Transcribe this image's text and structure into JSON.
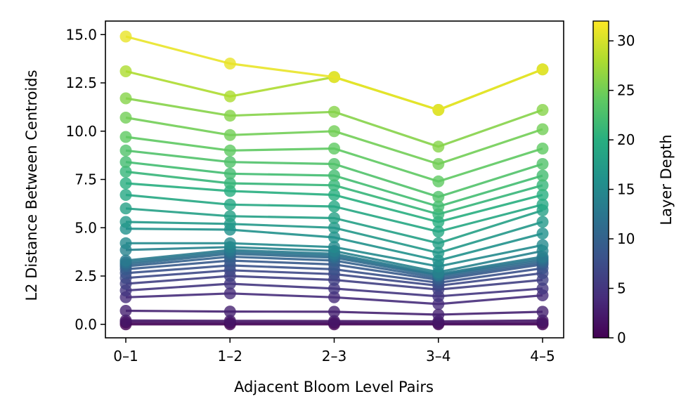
{
  "chart_data": {
    "type": "line",
    "title": "",
    "xlabel": "Adjacent Bloom Level Pairs",
    "ylabel": "L2 Distance Between Centroids",
    "categories": [
      "0–1",
      "1–2",
      "2–3",
      "3–4",
      "4–5"
    ],
    "ylim": [
      -0.7,
      15.7
    ],
    "yticks": [
      0.0,
      2.5,
      5.0,
      7.5,
      10.0,
      12.5,
      15.0
    ],
    "ytick_labels": [
      "0.0",
      "2.5",
      "5.0",
      "7.5",
      "10.0",
      "12.5",
      "15.0"
    ],
    "grid": false,
    "legend": "none",
    "colorbar": {
      "label": "Layer Depth",
      "colormap": "viridis",
      "range": [
        0,
        32
      ],
      "ticks": [
        0,
        5,
        10,
        15,
        20,
        25,
        30
      ],
      "tick_labels": [
        "0",
        "5",
        "10",
        "15",
        "20",
        "25",
        "30"
      ]
    },
    "series": [
      {
        "layer": 0,
        "values": [
          0.0,
          0.0,
          0.0,
          0.0,
          0.0
        ]
      },
      {
        "layer": 1,
        "values": [
          0.1,
          0.08,
          0.08,
          0.06,
          0.08
        ]
      },
      {
        "layer": 2,
        "values": [
          0.2,
          0.18,
          0.17,
          0.15,
          0.2
        ]
      },
      {
        "layer": 3,
        "values": [
          0.7,
          0.66,
          0.65,
          0.5,
          0.65
        ]
      },
      {
        "layer": 4,
        "values": [
          1.4,
          1.6,
          1.4,
          1.05,
          1.5
        ]
      },
      {
        "layer": 5,
        "values": [
          1.75,
          2.1,
          1.85,
          1.45,
          1.85
        ]
      },
      {
        "layer": 6,
        "values": [
          2.1,
          2.5,
          2.3,
          1.8,
          2.3
        ]
      },
      {
        "layer": 7,
        "values": [
          2.4,
          2.8,
          2.6,
          2.0,
          2.65
        ]
      },
      {
        "layer": 8,
        "values": [
          2.65,
          3.05,
          2.85,
          2.15,
          2.9
        ]
      },
      {
        "layer": 9,
        "values": [
          2.85,
          3.3,
          3.1,
          2.3,
          3.1
        ]
      },
      {
        "layer": 10,
        "values": [
          3.0,
          3.5,
          3.3,
          2.4,
          3.2
        ]
      },
      {
        "layer": 11,
        "values": [
          3.1,
          3.65,
          3.45,
          2.5,
          3.3
        ]
      },
      {
        "layer": 12,
        "values": [
          3.2,
          3.75,
          3.55,
          2.55,
          3.4
        ]
      },
      {
        "layer": 13,
        "values": [
          3.3,
          3.85,
          3.65,
          2.6,
          3.5
        ]
      },
      {
        "layer": 14,
        "values": [
          3.85,
          4.0,
          3.8,
          2.7,
          3.8
        ]
      },
      {
        "layer": 15,
        "values": [
          4.2,
          4.2,
          4.0,
          3.0,
          4.1
        ]
      },
      {
        "layer": 16,
        "values": [
          4.95,
          4.9,
          4.5,
          3.3,
          4.7
        ]
      },
      {
        "layer": 17,
        "values": [
          5.3,
          5.2,
          5.0,
          3.7,
          5.3
        ]
      },
      {
        "layer": 18,
        "values": [
          6.0,
          5.6,
          5.5,
          4.2,
          5.9
        ]
      },
      {
        "layer": 19,
        "values": [
          6.7,
          6.2,
          6.1,
          4.8,
          6.2
        ]
      },
      {
        "layer": 20,
        "values": [
          7.3,
          6.9,
          6.7,
          5.3,
          6.7
        ]
      },
      {
        "layer": 21,
        "values": [
          7.9,
          7.3,
          7.2,
          5.7,
          7.2
        ]
      },
      {
        "layer": 22,
        "values": [
          8.4,
          7.8,
          7.7,
          6.1,
          7.7
        ]
      },
      {
        "layer": 23,
        "values": [
          9.0,
          8.4,
          8.3,
          6.6,
          8.3
        ]
      },
      {
        "layer": 24,
        "values": [
          9.7,
          9.0,
          9.1,
          7.4,
          9.1
        ]
      },
      {
        "layer": 25,
        "values": [
          10.7,
          9.8,
          10.0,
          8.3,
          10.1
        ]
      },
      {
        "layer": 26,
        "values": [
          11.7,
          10.8,
          11.0,
          9.2,
          11.1
        ]
      },
      {
        "layer": 28,
        "values": [
          13.1,
          11.8,
          12.8,
          11.1,
          13.2
        ]
      },
      {
        "layer": 31,
        "values": [
          14.9,
          13.5,
          12.8,
          11.1,
          13.2
        ]
      }
    ]
  }
}
